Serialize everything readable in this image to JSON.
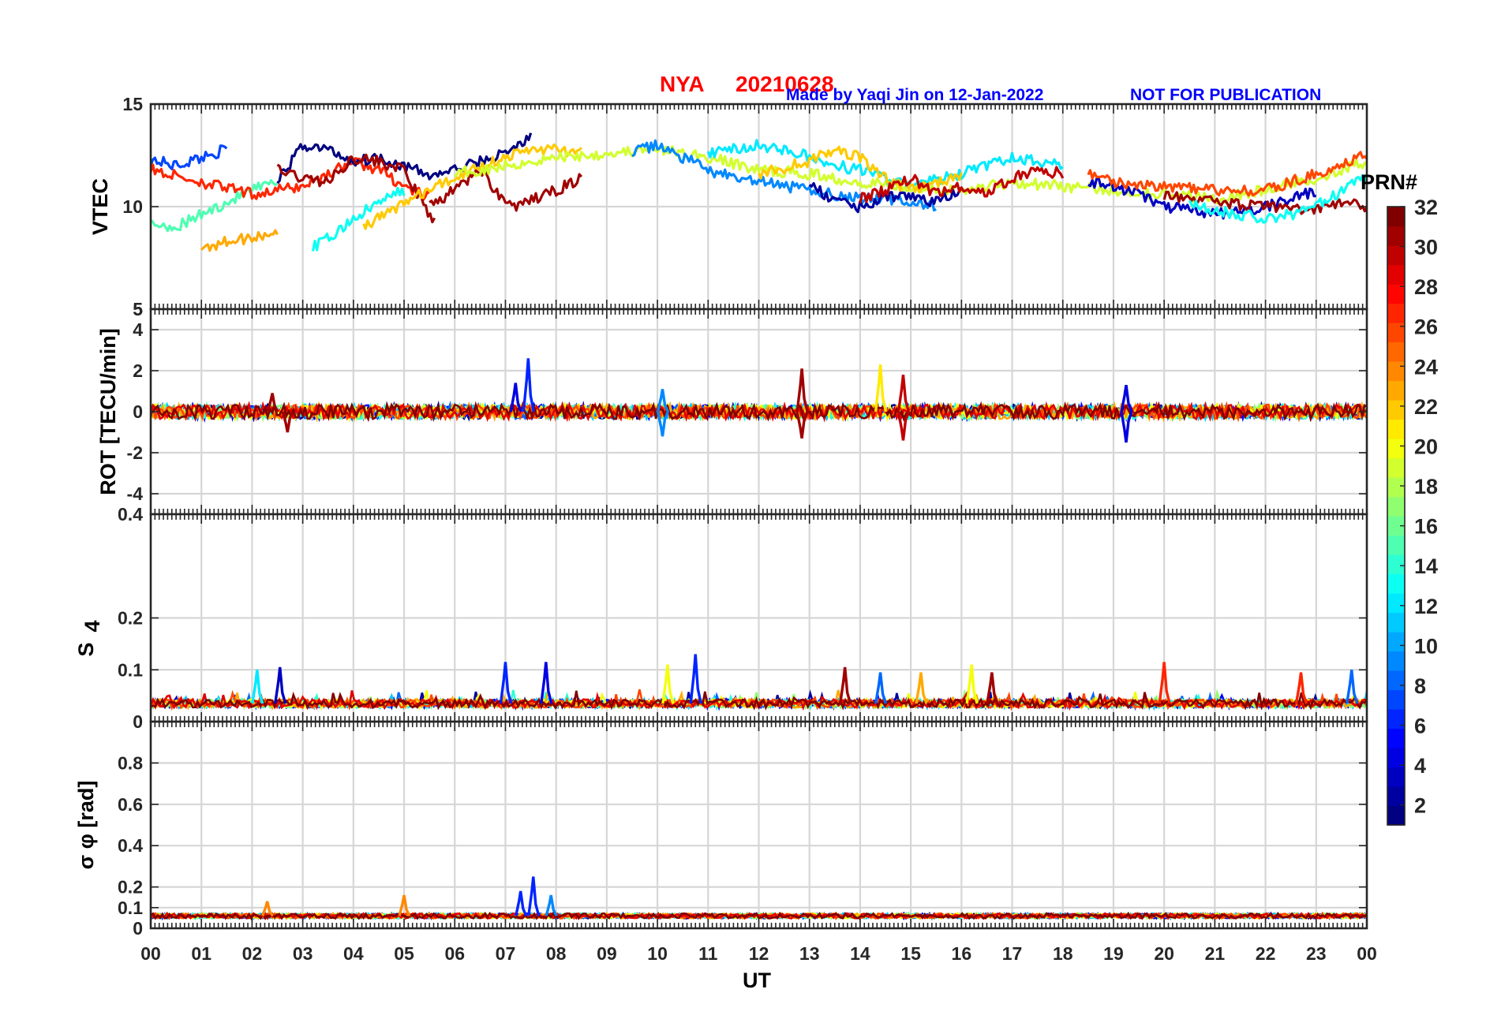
{
  "header": {
    "title_station": "NYA",
    "title_date": "20210628",
    "credit": "Made by Yaqi Jin on 12-Jan-2022",
    "notice": "NOT FOR PUBLICATION",
    "title_color": "#ff0000",
    "credit_color": "#0000ff"
  },
  "colorbar": {
    "label": "PRN#",
    "ticks": [
      "2",
      "4",
      "6",
      "8",
      "10",
      "12",
      "14",
      "16",
      "18",
      "20",
      "22",
      "24",
      "26",
      "28",
      "30",
      "32"
    ],
    "colormap": "jet",
    "range": [
      1,
      32
    ]
  },
  "x_axis": {
    "label": "UT",
    "ticks": [
      "00",
      "01",
      "02",
      "03",
      "04",
      "05",
      "06",
      "07",
      "08",
      "09",
      "10",
      "11",
      "12",
      "13",
      "14",
      "15",
      "16",
      "17",
      "18",
      "19",
      "20",
      "21",
      "22",
      "23",
      "00"
    ],
    "range_hours": [
      0,
      24
    ]
  },
  "chart_data": [
    {
      "type": "line",
      "panel": "VTEC",
      "ylabel": "VTEC",
      "ylim": [
        5,
        15
      ],
      "yticks": [
        "5",
        "10",
        "15"
      ],
      "grid": true,
      "series_note": "one line per satellite PRN colored by colorbar",
      "series": [
        {
          "prn": 7,
          "t": [
            0,
            0.5,
            1,
            1.5
          ],
          "values": [
            12.3,
            12.0,
            12.4,
            12.8
          ]
        },
        {
          "prn": 15,
          "t": [
            0,
            0.5,
            1,
            1.5,
            2,
            2.5
          ],
          "values": [
            9.2,
            9.0,
            9.6,
            10.2,
            10.8,
            11.2
          ]
        },
        {
          "prn": 23,
          "t": [
            1,
            1.5,
            2,
            2.5
          ],
          "values": [
            8.0,
            8.3,
            8.5,
            8.8
          ]
        },
        {
          "prn": 27,
          "t": [
            0,
            1,
            2,
            3,
            3.5,
            4,
            4.5,
            5,
            5.5
          ],
          "values": [
            11.8,
            11.2,
            10.6,
            11.0,
            11.6,
            12.2,
            11.8,
            11.0,
            10.4
          ]
        },
        {
          "prn": 1,
          "t": [
            2.5,
            3,
            3.5,
            4,
            4.5,
            5,
            5.5,
            6,
            6.5,
            7,
            7.5
          ],
          "values": [
            11.2,
            13.0,
            12.8,
            12.2,
            12.4,
            12.0,
            11.5,
            11.8,
            12.2,
            12.6,
            13.4
          ]
        },
        {
          "prn": 31,
          "t": [
            2.5,
            3,
            3.5,
            4,
            4.5,
            5,
            5.3,
            5.6
          ],
          "values": [
            11.8,
            11.4,
            11.2,
            12.4,
            12.2,
            11.8,
            10.4,
            9.2
          ]
        },
        {
          "prn": 13,
          "t": [
            3.2,
            3.6,
            4,
            4.5,
            5
          ],
          "values": [
            8.0,
            8.6,
            9.4,
            10.2,
            10.8
          ]
        },
        {
          "prn": 22,
          "t": [
            4.2,
            4.6,
            5,
            5.5,
            6,
            6.5,
            7,
            7.5,
            8,
            8.5
          ],
          "values": [
            9.0,
            9.6,
            10.2,
            10.8,
            11.4,
            12.0,
            12.4,
            12.8,
            12.8,
            12.6
          ]
        },
        {
          "prn": 31,
          "t": [
            5.5,
            6,
            6.5,
            7,
            7.3,
            7.6,
            8,
            8.5
          ],
          "values": [
            10.0,
            10.8,
            11.8,
            10.2,
            10.0,
            10.4,
            10.8,
            11.4
          ]
        },
        {
          "prn": 19,
          "t": [
            6,
            7,
            8,
            9,
            10,
            11,
            12,
            13,
            14,
            15,
            16,
            17,
            18,
            19,
            20,
            21,
            22,
            23,
            24
          ],
          "values": [
            11.6,
            12.0,
            12.4,
            12.6,
            12.8,
            12.4,
            11.8,
            11.6,
            11.2,
            11.0,
            10.8,
            11.2,
            11.0,
            10.8,
            10.6,
            10.4,
            10.8,
            11.4,
            12.2
          ]
        },
        {
          "prn": 9,
          "t": [
            9.5,
            10,
            10.5,
            11,
            11.5,
            12,
            12.5,
            13,
            13.5,
            14,
            14.5,
            15,
            15.5
          ],
          "values": [
            12.6,
            13.0,
            12.4,
            11.8,
            11.4,
            11.2,
            11.0,
            10.8,
            10.6,
            10.4,
            10.4,
            10.2,
            10.0
          ]
        },
        {
          "prn": 12,
          "t": [
            11,
            11.5,
            12,
            12.5,
            13,
            13.5,
            14,
            14.5,
            15,
            16,
            17,
            18
          ],
          "values": [
            12.6,
            12.8,
            13.0,
            12.8,
            12.4,
            12.0,
            11.8,
            11.4,
            11.0,
            11.6,
            12.4,
            12.0
          ]
        },
        {
          "prn": 22,
          "t": [
            12,
            13,
            13.5,
            14,
            14.5,
            15,
            15.5,
            16
          ],
          "values": [
            11.6,
            12.2,
            12.8,
            12.4,
            11.4,
            10.8,
            11.2,
            11.4
          ]
        },
        {
          "prn": 2,
          "t": [
            13,
            13.5,
            14,
            14.5,
            15,
            15.5,
            16
          ],
          "values": [
            11.2,
            10.2,
            10.0,
            10.4,
            10.6,
            10.2,
            10.8
          ]
        },
        {
          "prn": 30,
          "t": [
            14,
            14.5,
            15,
            15.5,
            16,
            16.5,
            17,
            17.5,
            18
          ],
          "values": [
            10.4,
            10.8,
            11.4,
            10.6,
            11.0,
            10.6,
            11.4,
            11.8,
            11.6
          ]
        },
        {
          "prn": 3,
          "t": [
            18.5,
            19,
            19.5,
            20,
            20.5,
            21,
            21.5,
            22,
            22.5,
            23
          ],
          "values": [
            11.2,
            11.0,
            10.6,
            10.0,
            9.8,
            9.6,
            9.8,
            10.0,
            10.4,
            10.8
          ]
        },
        {
          "prn": 26,
          "t": [
            18.5,
            19,
            20,
            21,
            22,
            23,
            23.5,
            24
          ],
          "values": [
            11.6,
            11.2,
            11.0,
            10.8,
            10.8,
            11.6,
            12.0,
            12.6
          ]
        },
        {
          "prn": 31,
          "t": [
            20,
            21,
            22,
            23,
            23.5,
            24
          ],
          "values": [
            10.6,
            10.2,
            10.0,
            9.8,
            10.2,
            10.0
          ]
        },
        {
          "prn": 13,
          "t": [
            20.5,
            21,
            21.5,
            22,
            22.5,
            23,
            23.5,
            24
          ],
          "values": [
            10.2,
            9.8,
            9.6,
            9.4,
            9.6,
            10.0,
            10.8,
            11.4
          ]
        }
      ]
    },
    {
      "type": "line",
      "panel": "ROT",
      "ylabel": "ROT [TECU/min]",
      "ylim": [
        -5,
        5
      ],
      "yticks": [
        "-4",
        "-2",
        "0",
        "2",
        "4"
      ],
      "ytick_top": "5",
      "grid": true,
      "baseline": 0,
      "spikes": [
        {
          "t": 7.45,
          "value": 2.6,
          "prn": 6
        },
        {
          "t": 7.2,
          "value": 1.4,
          "prn": 4
        },
        {
          "t": 10.1,
          "value": 1.1,
          "prn": 9
        },
        {
          "t": 10.1,
          "value": -1.2,
          "prn": 9
        },
        {
          "t": 12.85,
          "value": 2.1,
          "prn": 31
        },
        {
          "t": 12.85,
          "value": -1.3,
          "prn": 31
        },
        {
          "t": 14.4,
          "value": 2.3,
          "prn": 21
        },
        {
          "t": 14.85,
          "value": 1.8,
          "prn": 30
        },
        {
          "t": 14.85,
          "value": -1.4,
          "prn": 30
        },
        {
          "t": 19.25,
          "value": 1.3,
          "prn": 4
        },
        {
          "t": 19.25,
          "value": -1.5,
          "prn": 4
        },
        {
          "t": 2.4,
          "value": 0.9,
          "prn": 31
        },
        {
          "t": 2.7,
          "value": -1.0,
          "prn": 31
        }
      ]
    },
    {
      "type": "line",
      "panel": "S4",
      "ylabel": "S4",
      "ylim": [
        0,
        0.4
      ],
      "yticks": [
        "0",
        "0.1",
        "0.2",
        "0.4"
      ],
      "grid": true,
      "baseline": 0.035,
      "peaks": [
        {
          "t": 2.55,
          "value": 0.105,
          "prn": 3
        },
        {
          "t": 2.1,
          "value": 0.1,
          "prn": 12
        },
        {
          "t": 7.0,
          "value": 0.115,
          "prn": 6
        },
        {
          "t": 7.8,
          "value": 0.115,
          "prn": 4
        },
        {
          "t": 10.2,
          "value": 0.11,
          "prn": 20
        },
        {
          "t": 10.75,
          "value": 0.13,
          "prn": 6
        },
        {
          "t": 13.7,
          "value": 0.105,
          "prn": 31
        },
        {
          "t": 14.4,
          "value": 0.095,
          "prn": 8
        },
        {
          "t": 15.2,
          "value": 0.095,
          "prn": 23
        },
        {
          "t": 16.2,
          "value": 0.11,
          "prn": 20
        },
        {
          "t": 16.6,
          "value": 0.095,
          "prn": 31
        },
        {
          "t": 20.0,
          "value": 0.115,
          "prn": 27
        },
        {
          "t": 22.7,
          "value": 0.095,
          "prn": 27
        },
        {
          "t": 23.7,
          "value": 0.1,
          "prn": 8
        }
      ]
    },
    {
      "type": "line",
      "panel": "sigma_phi",
      "ylabel": "σ φ [rad]",
      "ylim": [
        0,
        1
      ],
      "yticks": [
        "0",
        "0.1",
        "0.2",
        "0.4",
        "0.6",
        "0.8"
      ],
      "grid": true,
      "baseline": 0.06,
      "peaks": [
        {
          "t": 7.3,
          "value": 0.18,
          "prn": 6
        },
        {
          "t": 7.55,
          "value": 0.25,
          "prn": 6
        },
        {
          "t": 7.9,
          "value": 0.16,
          "prn": 9
        },
        {
          "t": 5.0,
          "value": 0.16,
          "prn": 24
        },
        {
          "t": 2.3,
          "value": 0.13,
          "prn": 24
        }
      ]
    }
  ]
}
